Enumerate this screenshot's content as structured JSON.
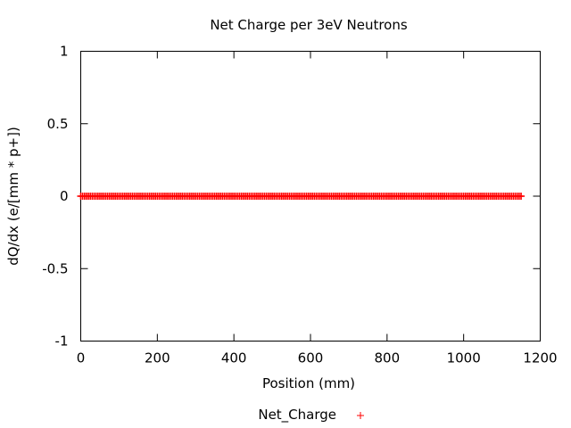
{
  "chart_data": {
    "type": "scatter",
    "title": "Net Charge per 3eV Neutrons",
    "xlabel": "Position (mm)",
    "ylabel": "dQ/dx (e/[mm * p+])",
    "xlim": [
      0,
      1200
    ],
    "ylim": [
      -1,
      1
    ],
    "x_ticks": [
      "0",
      "200",
      "400",
      "600",
      "800",
      "1000",
      "1200"
    ],
    "y_ticks": [
      "1",
      "0.5",
      "0",
      "-0.5",
      "-1"
    ],
    "grid": false,
    "legend_position": "bottom-center",
    "series": [
      {
        "name": "Net_Charge",
        "marker": "+",
        "color": "#ff0000",
        "x_range": [
          0,
          1150
        ],
        "x_step": 5,
        "y": 0
      }
    ]
  }
}
